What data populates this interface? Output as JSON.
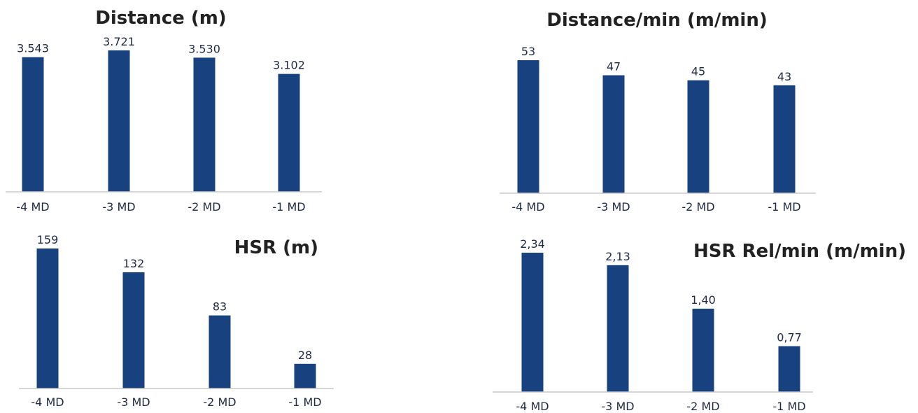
{
  "bar_color": "#17427f",
  "chart_data": [
    {
      "type": "bar",
      "title": "Distance (m)",
      "categories": [
        "-4 MD",
        "-3 MD",
        "-2 MD",
        "-1 MD"
      ],
      "values": [
        3543,
        3721,
        3530,
        3102
      ],
      "value_labels": [
        "3.543",
        "3.721",
        "3.530",
        "3.102"
      ],
      "ylim": [
        0,
        3721
      ],
      "grid": false
    },
    {
      "type": "bar",
      "title": "Distance/min (m/min)",
      "categories": [
        "-4 MD",
        "-3 MD",
        "-2 MD",
        "-1 MD"
      ],
      "values": [
        53,
        47,
        45,
        43
      ],
      "value_labels": [
        "53",
        "47",
        "45",
        "43"
      ],
      "ylim": [
        0,
        53
      ],
      "grid": false
    },
    {
      "type": "bar",
      "title": "HSR (m)",
      "categories": [
        "-4 MD",
        "-3 MD",
        "-2 MD",
        "-1 MD"
      ],
      "values": [
        159,
        132,
        83,
        28
      ],
      "value_labels": [
        "159",
        "132",
        "83",
        "28"
      ],
      "ylim": [
        0,
        159
      ],
      "grid": false
    },
    {
      "type": "bar",
      "title": "HSR Rel/min (m/min)",
      "categories": [
        "-4 MD",
        "-3 MD",
        "-2 MD",
        "-1 MD"
      ],
      "values": [
        2.34,
        2.13,
        1.4,
        0.77
      ],
      "value_labels": [
        "2,34",
        "2,13",
        "1,40",
        "0,77"
      ],
      "ylim": [
        0,
        2.34
      ],
      "grid": false
    }
  ]
}
